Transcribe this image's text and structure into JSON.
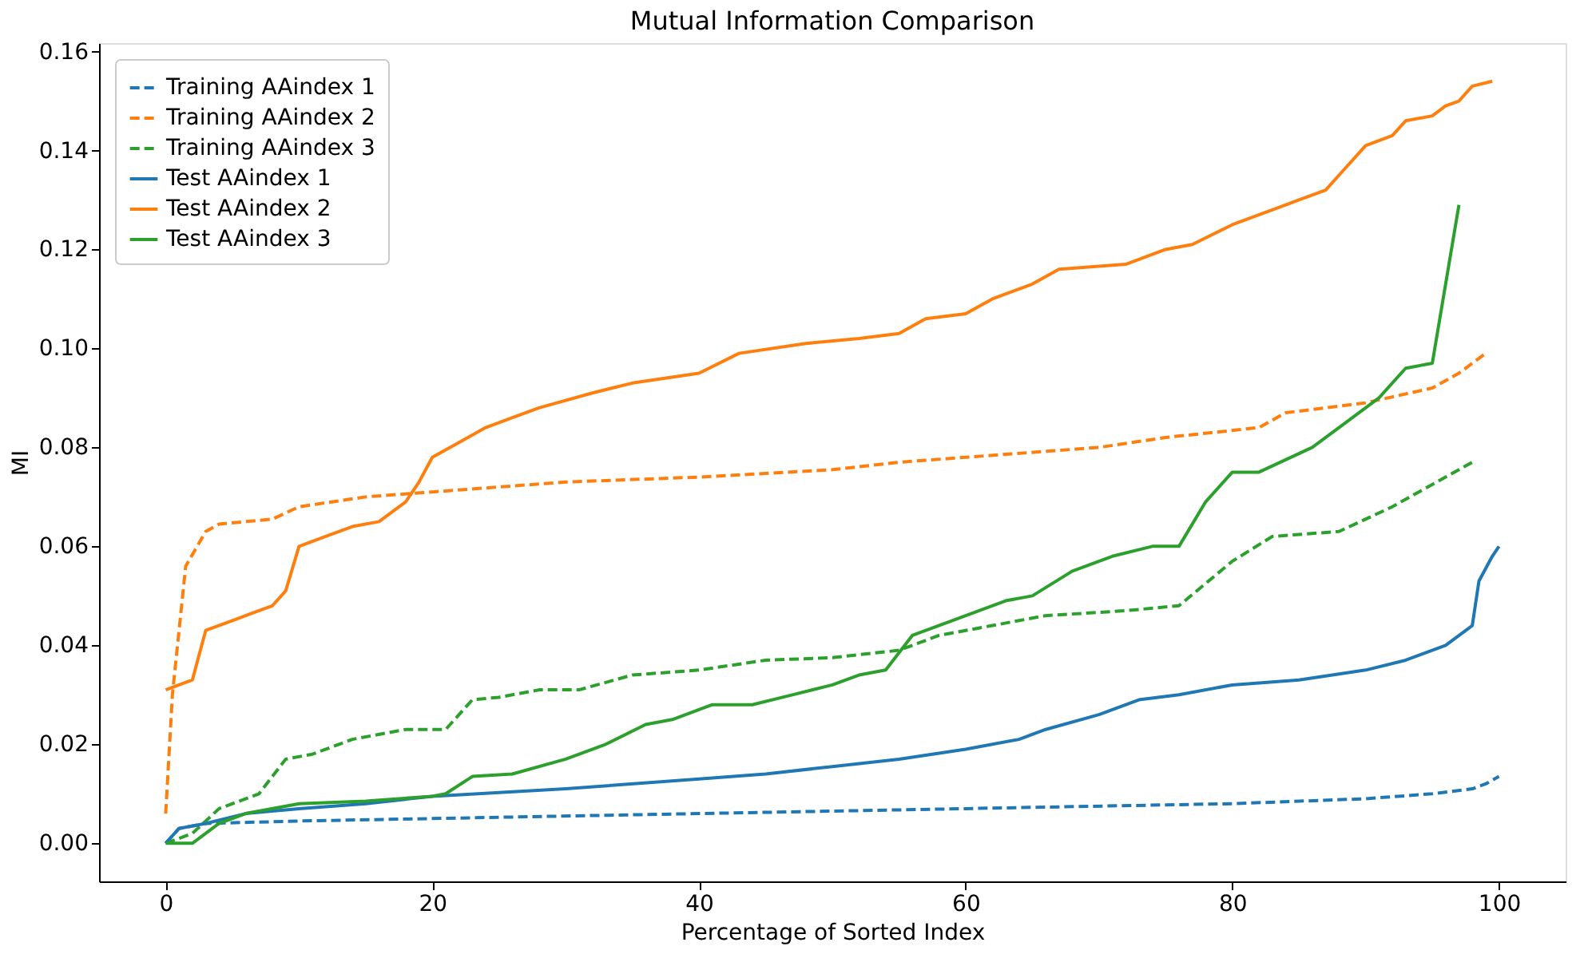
{
  "chart_data": {
    "type": "line",
    "title": "Mutual Information Comparison",
    "xlabel": "Percentage of Sorted Index",
    "ylabel": "MI",
    "xlim": [
      -5,
      105
    ],
    "ylim": [
      -0.0077,
      0.1617
    ],
    "xticks": [
      0,
      20,
      40,
      60,
      80,
      100
    ],
    "yticks": [
      {
        "value": 0,
        "label": "0.00"
      },
      {
        "value": 0.02,
        "label": "0.02"
      },
      {
        "value": 0.04,
        "label": "0.04"
      },
      {
        "value": 0.06,
        "label": "0.06"
      },
      {
        "value": 0.08,
        "label": "0.08"
      },
      {
        "value": 0.1,
        "label": "0.10"
      },
      {
        "value": 0.12,
        "label": "0.12"
      },
      {
        "value": 0.14,
        "label": "0.14"
      },
      {
        "value": 0.16,
        "label": "0.16"
      }
    ],
    "grid": false,
    "legend": "top left",
    "series": [
      {
        "name": "Training AAindex 1",
        "color": "#1f77b4",
        "line_style": "dashed",
        "x": [
          0,
          1,
          3,
          10,
          20,
          40,
          60,
          80,
          90,
          95,
          98,
          99,
          100
        ],
        "values": [
          0,
          0.003,
          0.004,
          0.0045,
          0.005,
          0.006,
          0.007,
          0.008,
          0.009,
          0.01,
          0.011,
          0.012,
          0.0135
        ]
      },
      {
        "name": "Training AAindex 2",
        "color": "#ff7f0e",
        "line_style": "dashed",
        "x": [
          0,
          0.5,
          1.5,
          3,
          4,
          8,
          10,
          15,
          20,
          30,
          40,
          50,
          55,
          60,
          70,
          75,
          82,
          84,
          90,
          95,
          97,
          99
        ],
        "values": [
          0.006,
          0.03,
          0.056,
          0.063,
          0.0645,
          0.0655,
          0.068,
          0.07,
          0.071,
          0.073,
          0.074,
          0.0755,
          0.077,
          0.078,
          0.08,
          0.082,
          0.084,
          0.087,
          0.089,
          0.092,
          0.095,
          0.099
        ]
      },
      {
        "name": "Training AAindex 3",
        "color": "#2ca02c",
        "line_style": "dashed",
        "x": [
          0,
          2,
          4,
          7,
          9,
          11,
          14,
          18,
          21,
          23,
          25,
          28,
          31,
          35,
          40,
          45,
          50,
          55,
          58,
          62,
          66,
          72,
          76,
          80,
          83,
          88,
          92,
          96,
          98
        ],
        "values": [
          0,
          0.002,
          0.007,
          0.01,
          0.017,
          0.018,
          0.021,
          0.023,
          0.023,
          0.029,
          0.0295,
          0.031,
          0.031,
          0.034,
          0.035,
          0.037,
          0.0375,
          0.039,
          0.042,
          0.044,
          0.046,
          0.047,
          0.048,
          0.057,
          0.062,
          0.063,
          0.068,
          0.074,
          0.077
        ]
      },
      {
        "name": "Test AAindex 1",
        "color": "#1f77b4",
        "line_style": "solid",
        "x": [
          0,
          1,
          3,
          6,
          10,
          15,
          20,
          30,
          40,
          45,
          50,
          55,
          60,
          64,
          66,
          70,
          73,
          76,
          80,
          85,
          90,
          93,
          96,
          98,
          98.5,
          99.5,
          100
        ],
        "values": [
          0,
          0.003,
          0.004,
          0.006,
          0.007,
          0.008,
          0.0095,
          0.011,
          0.013,
          0.014,
          0.0155,
          0.017,
          0.019,
          0.021,
          0.023,
          0.026,
          0.029,
          0.03,
          0.032,
          0.033,
          0.035,
          0.037,
          0.04,
          0.044,
          0.053,
          0.058,
          0.06
        ]
      },
      {
        "name": "Test AAindex 2",
        "color": "#ff7f0e",
        "line_style": "solid",
        "x": [
          0,
          2,
          3,
          5,
          7,
          8,
          9,
          10,
          12,
          14,
          16,
          18,
          19,
          20,
          22,
          24,
          26,
          28,
          32,
          35,
          40,
          43,
          48,
          52,
          55,
          57,
          60,
          62,
          65,
          67,
          72,
          75,
          77,
          80,
          85,
          87,
          88,
          90,
          92,
          93,
          95,
          96,
          97,
          98,
          99.5
        ],
        "values": [
          0.031,
          0.033,
          0.043,
          0.045,
          0.047,
          0.048,
          0.051,
          0.06,
          0.062,
          0.064,
          0.065,
          0.069,
          0.073,
          0.078,
          0.081,
          0.084,
          0.086,
          0.088,
          0.091,
          0.093,
          0.095,
          0.099,
          0.101,
          0.102,
          0.103,
          0.106,
          0.107,
          0.11,
          0.113,
          0.116,
          0.117,
          0.12,
          0.121,
          0.125,
          0.13,
          0.132,
          0.135,
          0.141,
          0.143,
          0.146,
          0.147,
          0.149,
          0.15,
          0.153,
          0.154
        ]
      },
      {
        "name": "Test AAindex 3",
        "color": "#2ca02c",
        "line_style": "solid",
        "x": [
          0,
          2,
          4,
          6,
          10,
          15,
          20,
          21,
          23,
          26,
          30,
          33,
          36,
          38,
          41,
          44,
          47,
          50,
          52,
          54,
          56,
          59,
          63,
          65,
          68,
          71,
          74,
          76,
          78,
          80,
          82,
          86,
          88,
          91,
          93,
          95,
          97
        ],
        "values": [
          0,
          0,
          0.004,
          0.006,
          0.008,
          0.0085,
          0.0095,
          0.01,
          0.0135,
          0.014,
          0.017,
          0.02,
          0.024,
          0.025,
          0.028,
          0.028,
          0.03,
          0.032,
          0.034,
          0.035,
          0.042,
          0.045,
          0.049,
          0.05,
          0.055,
          0.058,
          0.06,
          0.06,
          0.069,
          0.075,
          0.075,
          0.08,
          0.084,
          0.09,
          0.096,
          0.097,
          0.129
        ]
      }
    ]
  }
}
